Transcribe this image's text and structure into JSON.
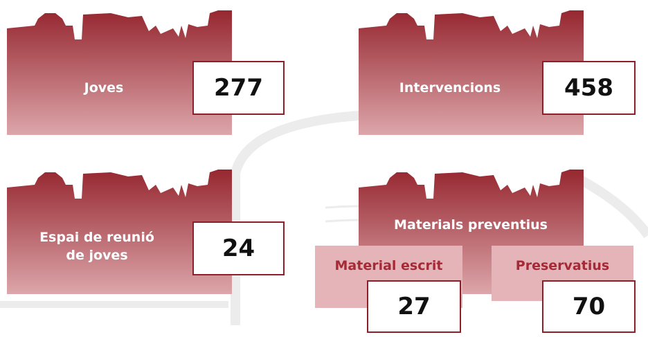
{
  "cards": [
    {
      "label": "Joves",
      "value": 277
    },
    {
      "label": "Intervencions",
      "value": 458
    },
    {
      "label": "Espai de reunió de joves",
      "value": 24
    },
    {
      "label": "Materials preventius",
      "items": [
        {
          "label": "Material escrit",
          "value": 27
        },
        {
          "label": "Preservatius",
          "value": 70
        }
      ]
    }
  ]
}
